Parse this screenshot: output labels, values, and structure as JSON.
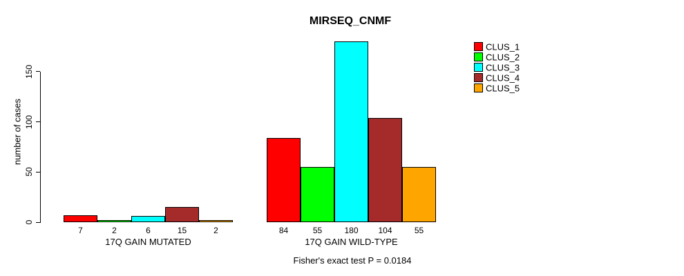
{
  "chart_data": {
    "type": "bar",
    "title": "MIRSEQ_CNMF",
    "ylabel": "number of cases",
    "xlabel": "",
    "yticks": [
      0,
      50,
      100,
      150
    ],
    "ylim": [
      0,
      185
    ],
    "grid": false,
    "bar_outline_color": "#000000",
    "background_color": "#ffffff",
    "cluster_colors": [
      "#ff0000",
      "#00ff00",
      "#00ffff",
      "#a52a2a",
      "#ffa500"
    ],
    "groups": [
      {
        "label": "17Q GAIN MUTATED",
        "values": [
          7,
          2,
          6,
          15,
          2
        ]
      },
      {
        "label": "17Q GAIN WILD-TYPE",
        "values": [
          84,
          55,
          180,
          104,
          55
        ]
      }
    ],
    "legend": {
      "position": "top-right",
      "entries": [
        {
          "label": "CLUS_1",
          "color": "#ff0000"
        },
        {
          "label": "CLUS_2",
          "color": "#00ff00"
        },
        {
          "label": "CLUS_3",
          "color": "#00ffff"
        },
        {
          "label": "CLUS_4",
          "color": "#a52a2a"
        },
        {
          "label": "CLUS_5",
          "color": "#ffa500"
        }
      ]
    },
    "caption": "Fisher's exact test P = 0.0184"
  }
}
